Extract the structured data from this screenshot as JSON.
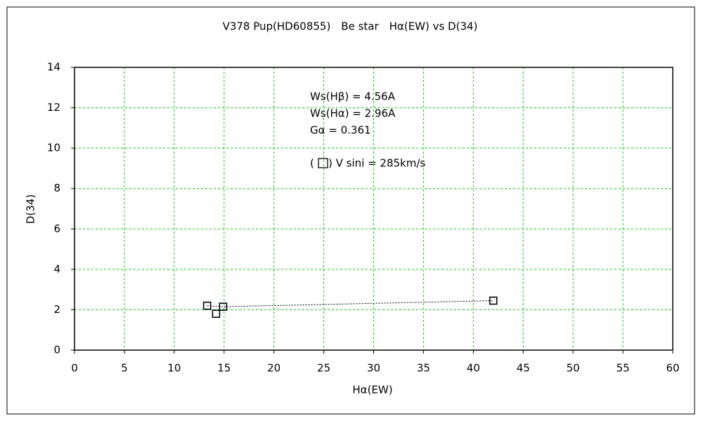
{
  "chart_data": {
    "type": "scatter",
    "title": "V378 Pup(HD60855)　Be star　Hα(EW) vs D(34)",
    "x_label": "Hα(EW)",
    "y_label": "D(34)",
    "xlim": [
      0,
      60
    ],
    "xticks": [
      0,
      5,
      10,
      15,
      20,
      25,
      30,
      35,
      40,
      45,
      50,
      55,
      60
    ],
    "ylim": [
      0,
      14
    ],
    "yticks": [
      0,
      2,
      4,
      6,
      8,
      10,
      12,
      14
    ],
    "grid": true,
    "grid_color": "#00cc00",
    "annotations": [
      "Ws(Hβ) = 4.56A",
      "Ws(Hα) = 2.96A",
      "Gα = 0.361",
      "(",
      ") V sini = 285km/s"
    ],
    "series": [
      {
        "color": "#000000",
        "marker": "square",
        "line": false,
        "x": [
          13.3,
          14.2,
          14.9,
          42
        ],
        "values": [
          2.2,
          1.8,
          2.15,
          2.45
        ]
      },
      {
        "color": "#000000",
        "marker": "none",
        "line": true,
        "x": [
          13.3,
          14.9,
          42
        ],
        "values": [
          2.2,
          2.15,
          2.45
        ]
      }
    ]
  }
}
